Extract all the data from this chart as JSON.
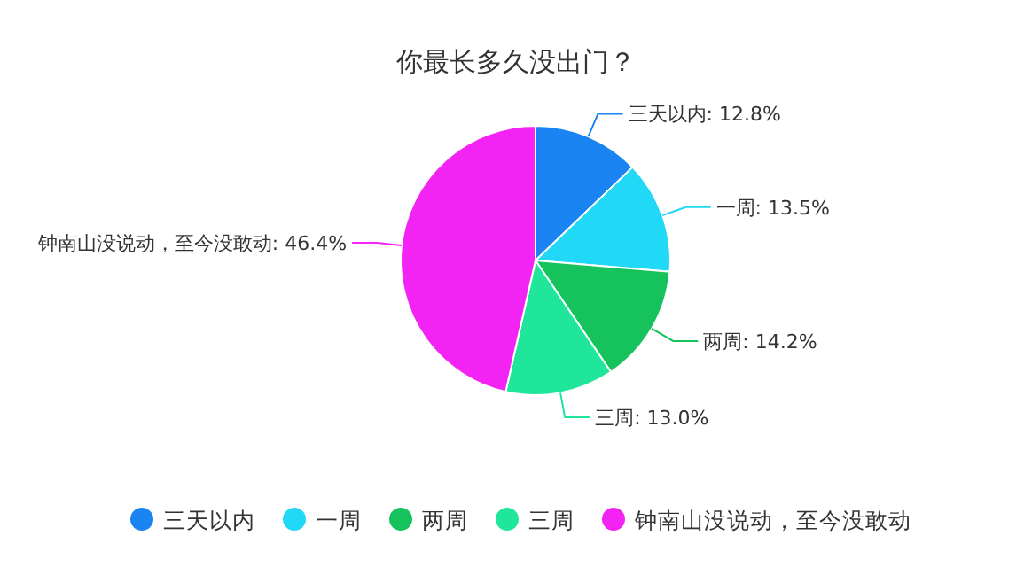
{
  "chart_data": {
    "type": "pie",
    "title": "你最长多久没出门？",
    "categories": [
      "三天以内",
      "一周",
      "两周",
      "三周",
      "钟南山没说动，至今没敢动"
    ],
    "values": [
      12.8,
      13.5,
      14.2,
      13.0,
      46.4
    ],
    "colors": [
      "#1a84f2",
      "#22d8f7",
      "#16c25c",
      "#1fe69b",
      "#f324f3"
    ],
    "value_labels": [
      "三天以内: 12.8%",
      "一周: 13.5%",
      "两周: 14.2%",
      "三周: 13.0%",
      "钟南山没说动，至今没敢动: 46.4%"
    ],
    "legend": "bottom"
  }
}
